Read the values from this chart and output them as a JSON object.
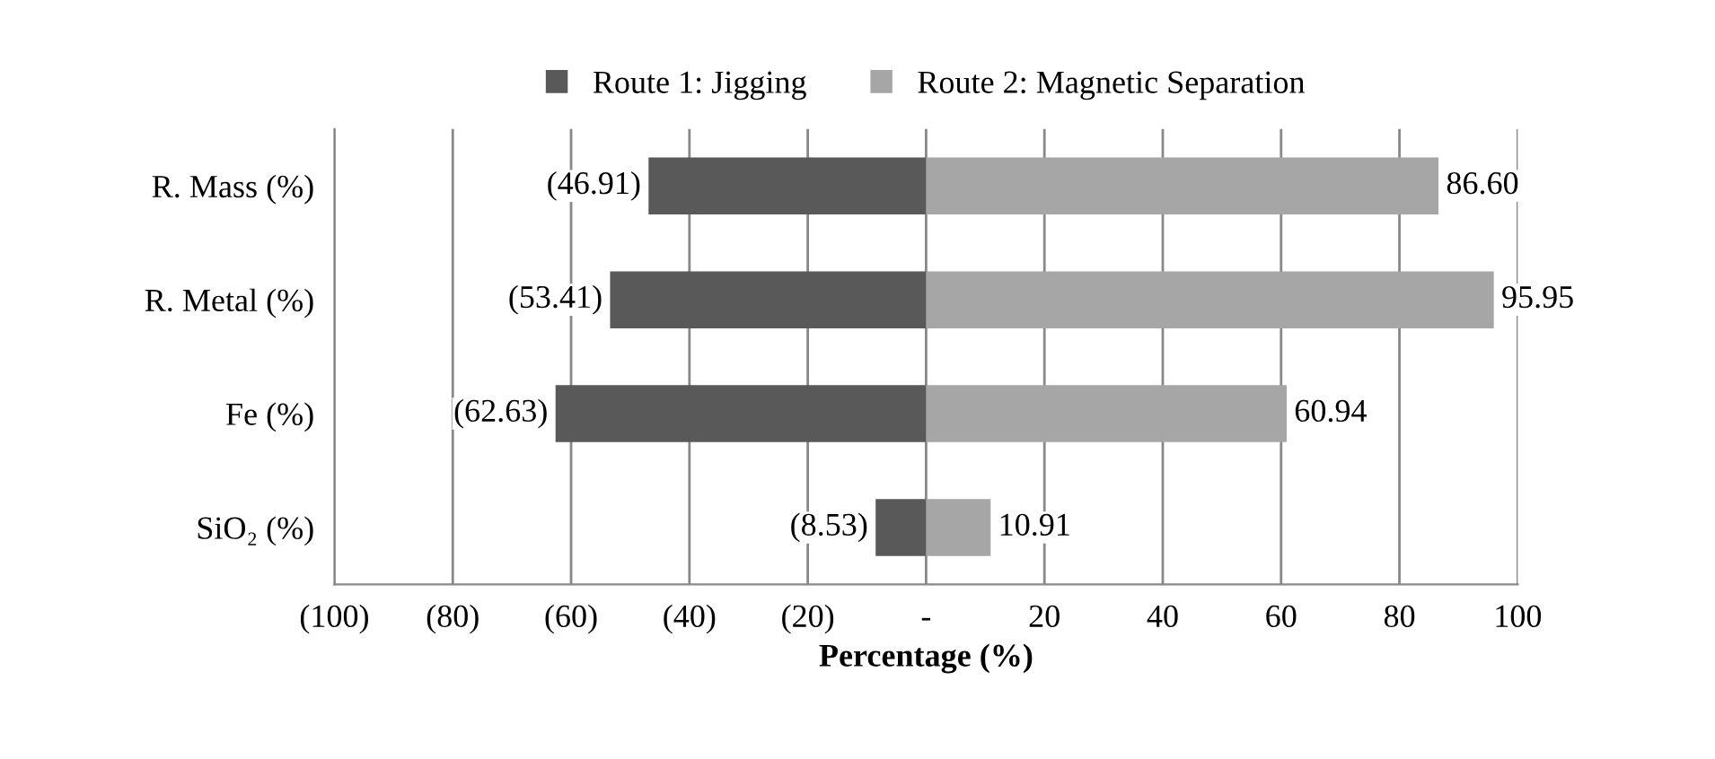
{
  "chart_data": {
    "type": "bar",
    "orientation": "horizontal",
    "xlabel": "Percentage (%)",
    "categories": [
      "R. Mass (%)",
      "R. Metal (%)",
      "Fe (%)",
      "SiO₂ (%)"
    ],
    "series": [
      {
        "name": "Route 1: Jigging",
        "color": "#595959",
        "values": [
          -46.91,
          -53.41,
          -62.63,
          -8.53
        ],
        "value_labels": [
          "(46.91)",
          "(53.41)",
          "(62.63)",
          "(8.53)"
        ]
      },
      {
        "name": "Route 2: Magnetic Separation",
        "color": "#a6a6a6",
        "values": [
          86.6,
          95.95,
          60.94,
          10.91
        ],
        "value_labels": [
          "86.60",
          "95.95",
          "60.94",
          "10.91"
        ]
      }
    ],
    "xlim": [
      -100,
      100
    ],
    "xticks": [
      {
        "value": -100,
        "label": "(100)"
      },
      {
        "value": -80,
        "label": "(80)"
      },
      {
        "value": -60,
        "label": "(60)"
      },
      {
        "value": -40,
        "label": "(40)"
      },
      {
        "value": -20,
        "label": "(20)"
      },
      {
        "value": 0,
        "label": "-"
      },
      20,
      40,
      60,
      80,
      100
    ],
    "grid": "x",
    "legend": "top",
    "stacked": true
  }
}
